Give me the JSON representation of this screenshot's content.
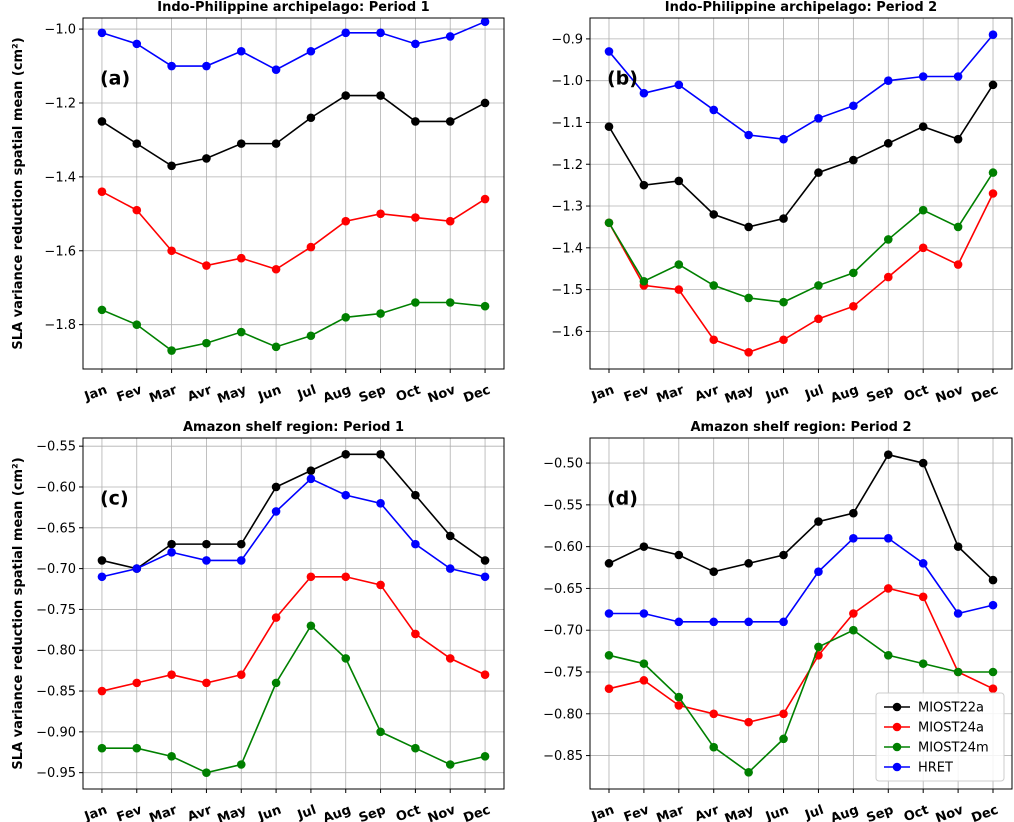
{
  "chart_data": [
    {
      "type": "line",
      "title": "Indo-Philippine archipelago: Period 1",
      "panel_label": "(a)",
      "ylabel": "SLA variance reduction spatial mean (cm²)",
      "categories": [
        "Jan",
        "Fev",
        "Mar",
        "Avr",
        "May",
        "Jun",
        "Jul",
        "Aug",
        "Sep",
        "Oct",
        "Nov",
        "Dec"
      ],
      "ylim": [
        -1.92,
        -0.97
      ],
      "yticks": [
        -1.8,
        -1.6,
        -1.4,
        -1.2,
        -1.0
      ],
      "ytick_labels": [
        "−1.8",
        "−1.6",
        "−1.4",
        "−1.2",
        "−1.0"
      ],
      "grid": true,
      "series": [
        {
          "name": "MIOST22a",
          "color": "#000000",
          "values": [
            -1.25,
            -1.31,
            -1.37,
            -1.35,
            -1.31,
            -1.31,
            -1.24,
            -1.18,
            -1.18,
            -1.25,
            -1.25,
            -1.2
          ]
        },
        {
          "name": "MIOST24a",
          "color": "#ff0000",
          "values": [
            -1.44,
            -1.49,
            -1.6,
            -1.64,
            -1.62,
            -1.65,
            -1.59,
            -1.52,
            -1.5,
            -1.51,
            -1.52,
            -1.46
          ]
        },
        {
          "name": "MIOST24m",
          "color": "#008000",
          "values": [
            -1.76,
            -1.8,
            -1.87,
            -1.85,
            -1.82,
            -1.86,
            -1.83,
            -1.78,
            -1.77,
            -1.74,
            -1.74,
            -1.75
          ]
        },
        {
          "name": "HRET",
          "color": "#0000ff",
          "values": [
            -1.01,
            -1.04,
            -1.1,
            -1.1,
            -1.06,
            -1.11,
            -1.06,
            -1.01,
            -1.01,
            -1.04,
            -1.02,
            -0.98
          ]
        }
      ]
    },
    {
      "type": "line",
      "title": "Indo-Philippine archipelago: Period 2",
      "panel_label": "(b)",
      "ylabel": "",
      "categories": [
        "Jan",
        "Fev",
        "Mar",
        "Avr",
        "May",
        "Jun",
        "Jul",
        "Aug",
        "Sep",
        "Oct",
        "Nov",
        "Dec"
      ],
      "ylim": [
        -1.69,
        -0.85
      ],
      "yticks": [
        -1.6,
        -1.5,
        -1.4,
        -1.3,
        -1.2,
        -1.1,
        -1.0,
        -0.9
      ],
      "ytick_labels": [
        "−1.6",
        "−1.5",
        "−1.4",
        "−1.3",
        "−1.2",
        "−1.1",
        "−1.0",
        "−0.9"
      ],
      "grid": true,
      "series": [
        {
          "name": "MIOST22a",
          "color": "#000000",
          "values": [
            -1.11,
            -1.25,
            -1.24,
            -1.32,
            -1.35,
            -1.33,
            -1.22,
            -1.19,
            -1.15,
            -1.11,
            -1.14,
            -1.01
          ]
        },
        {
          "name": "MIOST24a",
          "color": "#ff0000",
          "values": [
            -1.34,
            -1.49,
            -1.5,
            -1.62,
            -1.65,
            -1.62,
            -1.57,
            -1.54,
            -1.47,
            -1.4,
            -1.44,
            -1.27
          ]
        },
        {
          "name": "MIOST24m",
          "color": "#008000",
          "values": [
            -1.34,
            -1.48,
            -1.44,
            -1.49,
            -1.52,
            -1.53,
            -1.49,
            -1.46,
            -1.38,
            -1.31,
            -1.35,
            -1.22
          ]
        },
        {
          "name": "HRET",
          "color": "#0000ff",
          "values": [
            -0.93,
            -1.03,
            -1.01,
            -1.07,
            -1.13,
            -1.14,
            -1.09,
            -1.06,
            -1.0,
            -0.99,
            -0.99,
            -0.89
          ]
        }
      ]
    },
    {
      "type": "line",
      "title": "Amazon shelf region: Period 1",
      "panel_label": "(c)",
      "ylabel": "SLA variance reduction spatial mean (cm²)",
      "categories": [
        "Jan",
        "Fev",
        "Mar",
        "Avr",
        "May",
        "Jun",
        "Jul",
        "Aug",
        "Sep",
        "Oct",
        "Nov",
        "Dec"
      ],
      "ylim": [
        -0.97,
        -0.54
      ],
      "yticks": [
        -0.95,
        -0.9,
        -0.85,
        -0.8,
        -0.75,
        -0.7,
        -0.65,
        -0.6,
        -0.55
      ],
      "ytick_labels": [
        "−0.95",
        "−0.90",
        "−0.85",
        "−0.80",
        "−0.75",
        "−0.70",
        "−0.65",
        "−0.60",
        "−0.55"
      ],
      "grid": true,
      "series": [
        {
          "name": "MIOST22a",
          "color": "#000000",
          "values": [
            -0.69,
            -0.7,
            -0.67,
            -0.67,
            -0.67,
            -0.6,
            -0.58,
            -0.56,
            -0.56,
            -0.61,
            -0.66,
            -0.69
          ]
        },
        {
          "name": "MIOST24a",
          "color": "#ff0000",
          "values": [
            -0.85,
            -0.84,
            -0.83,
            -0.84,
            -0.83,
            -0.76,
            -0.71,
            -0.71,
            -0.72,
            -0.78,
            -0.81,
            -0.83
          ]
        },
        {
          "name": "MIOST24m",
          "color": "#008000",
          "values": [
            -0.92,
            -0.92,
            -0.93,
            -0.95,
            -0.94,
            -0.84,
            -0.77,
            -0.81,
            -0.9,
            -0.92,
            -0.94,
            -0.93
          ]
        },
        {
          "name": "HRET",
          "color": "#0000ff",
          "values": [
            -0.71,
            -0.7,
            -0.68,
            -0.69,
            -0.69,
            -0.63,
            -0.59,
            -0.61,
            -0.62,
            -0.67,
            -0.7,
            -0.71
          ]
        }
      ]
    },
    {
      "type": "line",
      "title": "Amazon shelf region: Period 2",
      "panel_label": "(d)",
      "ylabel": "",
      "categories": [
        "Jan",
        "Fev",
        "Mar",
        "Avr",
        "May",
        "Jun",
        "Jul",
        "Aug",
        "Sep",
        "Oct",
        "Nov",
        "Dec"
      ],
      "ylim": [
        -0.89,
        -0.47
      ],
      "yticks": [
        -0.85,
        -0.8,
        -0.75,
        -0.7,
        -0.65,
        -0.6,
        -0.55,
        -0.5
      ],
      "ytick_labels": [
        "−0.85",
        "−0.80",
        "−0.75",
        "−0.70",
        "−0.65",
        "−0.60",
        "−0.55",
        "−0.50"
      ],
      "grid": true,
      "legend": "lower-right",
      "series": [
        {
          "name": "MIOST22a",
          "color": "#000000",
          "values": [
            -0.62,
            -0.6,
            -0.61,
            -0.63,
            -0.62,
            -0.61,
            -0.57,
            -0.56,
            -0.49,
            -0.5,
            -0.6,
            -0.64
          ]
        },
        {
          "name": "MIOST24a",
          "color": "#ff0000",
          "values": [
            -0.77,
            -0.76,
            -0.79,
            -0.8,
            -0.81,
            -0.8,
            -0.73,
            -0.68,
            -0.65,
            -0.66,
            -0.75,
            -0.77
          ]
        },
        {
          "name": "MIOST24m",
          "color": "#008000",
          "values": [
            -0.73,
            -0.74,
            -0.78,
            -0.84,
            -0.87,
            -0.83,
            -0.72,
            -0.7,
            -0.73,
            -0.74,
            -0.75,
            -0.75
          ]
        },
        {
          "name": "HRET",
          "color": "#0000ff",
          "values": [
            -0.68,
            -0.68,
            -0.69,
            -0.69,
            -0.69,
            -0.69,
            -0.63,
            -0.59,
            -0.59,
            -0.62,
            -0.68,
            -0.67
          ]
        }
      ]
    }
  ]
}
